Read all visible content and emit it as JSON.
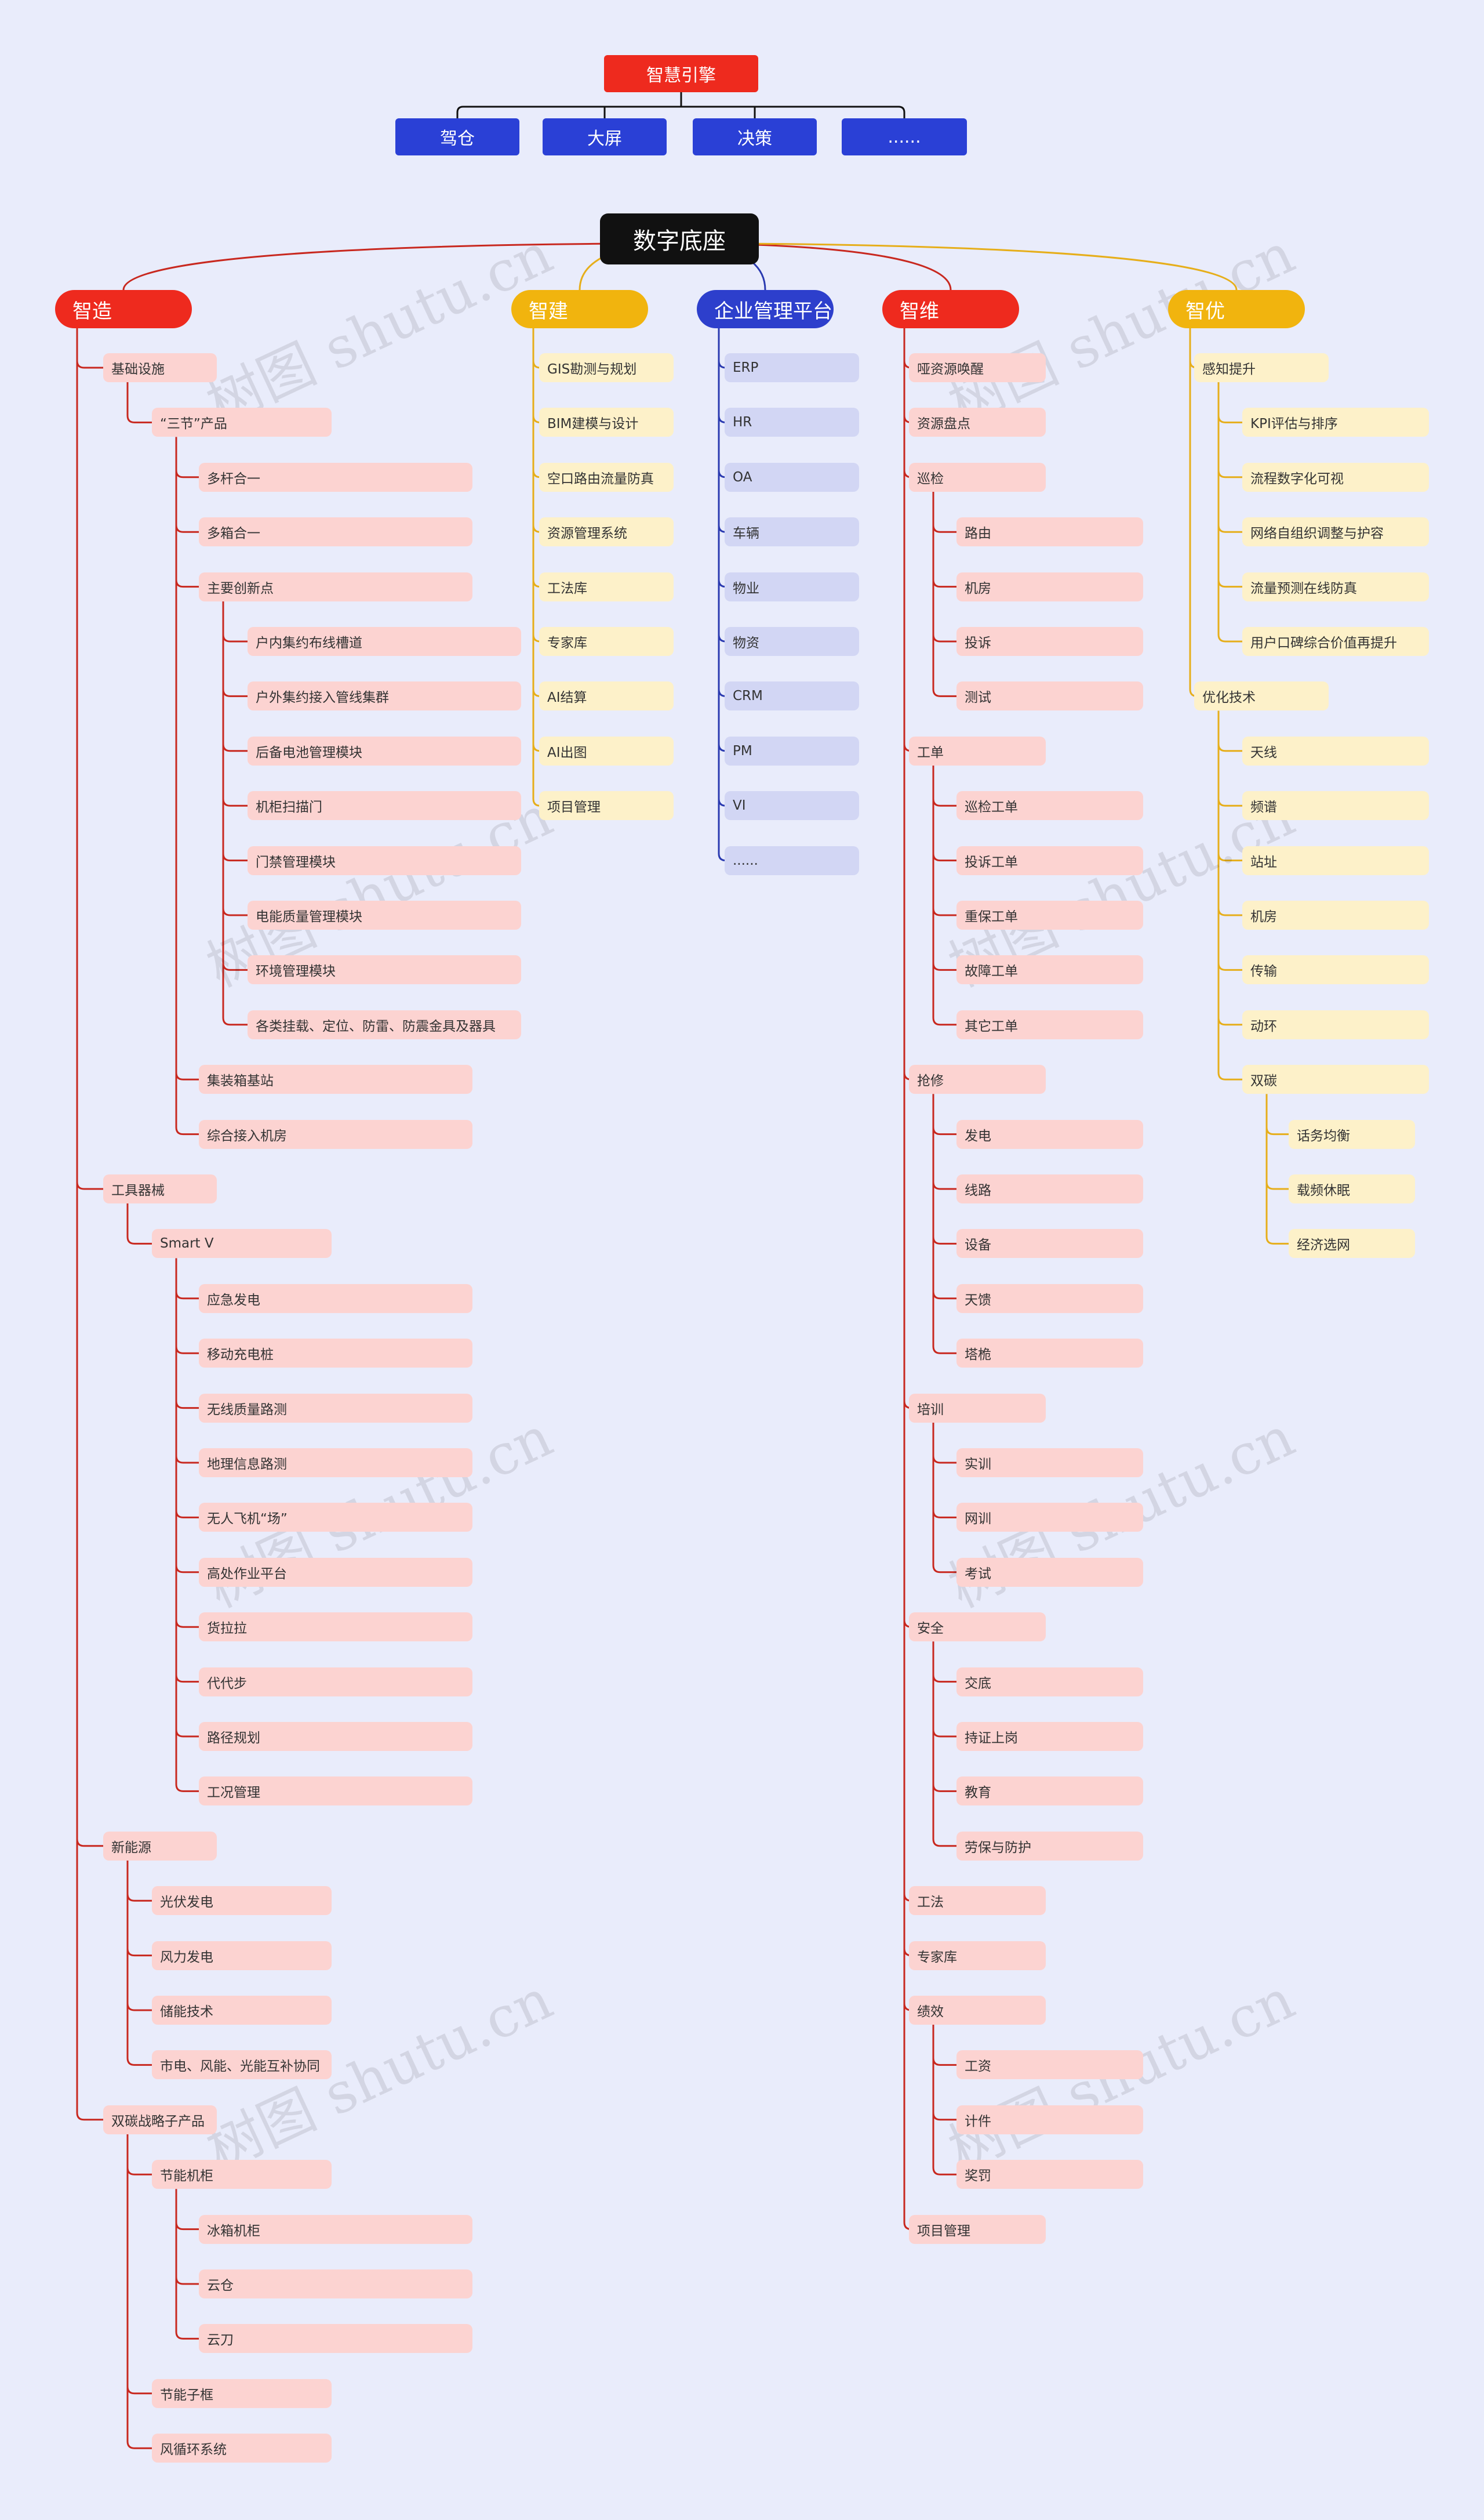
{
  "engine": {
    "title": "智慧引擎",
    "children": [
      "驾仓",
      "大屏",
      "决策",
      "......"
    ]
  },
  "center": {
    "title": "数字底座"
  },
  "branches": [
    {
      "title": "智造",
      "color": "red",
      "children": [
        {
          "label": "基础设施",
          "children": [
            {
              "label": "“三节”产品",
              "children": [
                {
                  "label": "多杆合一"
                },
                {
                  "label": "多箱合一"
                },
                {
                  "label": "主要创新点",
                  "children": [
                    {
                      "label": "户内集约布线槽道"
                    },
                    {
                      "label": "户外集约接入管线集群"
                    },
                    {
                      "label": "后备电池管理模块"
                    },
                    {
                      "label": "机柜扫描门"
                    },
                    {
                      "label": "门禁管理模块"
                    },
                    {
                      "label": "电能质量管理模块"
                    },
                    {
                      "label": "环境管理模块"
                    },
                    {
                      "label": "各类挂载、定位、防雷、防震金具及器具"
                    }
                  ]
                },
                {
                  "label": "集装箱基站"
                },
                {
                  "label": "综合接入机房"
                }
              ]
            }
          ]
        },
        {
          "label": "工具器械",
          "children": [
            {
              "label": "Smart V",
              "children": [
                {
                  "label": "应急发电"
                },
                {
                  "label": "移动充电桩"
                },
                {
                  "label": "无线质量路测"
                },
                {
                  "label": "地理信息路测"
                },
                {
                  "label": "无人飞机“场”"
                },
                {
                  "label": "高处作业平台"
                },
                {
                  "label": "货拉拉"
                },
                {
                  "label": "代代步"
                },
                {
                  "label": "路径规划"
                },
                {
                  "label": "工况管理"
                }
              ]
            }
          ]
        },
        {
          "label": "新能源",
          "children": [
            {
              "label": "光伏发电"
            },
            {
              "label": "风力发电"
            },
            {
              "label": "储能技术"
            },
            {
              "label": "市电、风能、光能互补协同"
            }
          ]
        },
        {
          "label": "双碳战略子产品",
          "children": [
            {
              "label": "节能机柜",
              "children": [
                {
                  "label": "冰箱机柜"
                },
                {
                  "label": "云仓"
                },
                {
                  "label": "云刀"
                }
              ]
            },
            {
              "label": "节能子框"
            },
            {
              "label": "风循环系统"
            }
          ]
        }
      ]
    },
    {
      "title": "智建",
      "color": "yellow",
      "children": [
        {
          "label": "GIS勘测与规划"
        },
        {
          "label": "BIM建模与设计"
        },
        {
          "label": "空口路由流量防真"
        },
        {
          "label": "资源管理系统"
        },
        {
          "label": "工法库"
        },
        {
          "label": "专家库"
        },
        {
          "label": "AI结算"
        },
        {
          "label": "AI出图"
        },
        {
          "label": "项目管理"
        }
      ]
    },
    {
      "title": "企业管理平台",
      "color": "blue",
      "children": [
        {
          "label": "ERP"
        },
        {
          "label": "HR"
        },
        {
          "label": "OA"
        },
        {
          "label": "车辆"
        },
        {
          "label": "物业"
        },
        {
          "label": "物资"
        },
        {
          "label": "CRM"
        },
        {
          "label": "PM"
        },
        {
          "label": "VI"
        },
        {
          "label": "......"
        }
      ]
    },
    {
      "title": "智维",
      "color": "red",
      "children": [
        {
          "label": "哑资源唤醒"
        },
        {
          "label": "资源盘点"
        },
        {
          "label": "巡检",
          "children": [
            {
              "label": "路由"
            },
            {
              "label": "机房"
            },
            {
              "label": "投诉"
            },
            {
              "label": "测试"
            }
          ]
        },
        {
          "label": "工单",
          "children": [
            {
              "label": "巡检工单"
            },
            {
              "label": "投诉工单"
            },
            {
              "label": "重保工单"
            },
            {
              "label": "故障工单"
            },
            {
              "label": "其它工单"
            }
          ]
        },
        {
          "label": "抢修",
          "children": [
            {
              "label": "发电"
            },
            {
              "label": "线路"
            },
            {
              "label": "设备"
            },
            {
              "label": "天馈"
            },
            {
              "label": "塔桅"
            }
          ]
        },
        {
          "label": "培训",
          "children": [
            {
              "label": "实训"
            },
            {
              "label": "网训"
            },
            {
              "label": "考试"
            }
          ]
        },
        {
          "label": "安全",
          "children": [
            {
              "label": "交底"
            },
            {
              "label": "持证上岗"
            },
            {
              "label": "教育"
            },
            {
              "label": "劳保与防护"
            }
          ]
        },
        {
          "label": "工法"
        },
        {
          "label": "专家库"
        },
        {
          "label": "绩效",
          "children": [
            {
              "label": "工资"
            },
            {
              "label": "计件"
            },
            {
              "label": "奖罚"
            }
          ]
        },
        {
          "label": "项目管理"
        }
      ]
    },
    {
      "title": "智优",
      "color": "yellow",
      "children": [
        {
          "label": "感知提升",
          "children": [
            {
              "label": "KPI评估与排序"
            },
            {
              "label": "流程数字化可视"
            },
            {
              "label": "网络自组织调整与护容"
            },
            {
              "label": "流量预测在线防真"
            },
            {
              "label": "用户口碑综合价值再提升"
            }
          ]
        },
        {
          "label": "优化技术",
          "children": [
            {
              "label": "天线"
            },
            {
              "label": "频谱"
            },
            {
              "label": "站址"
            },
            {
              "label": "机房"
            },
            {
              "label": "传输"
            },
            {
              "label": "动环"
            },
            {
              "label": "双碳",
              "children": [
                {
                  "label": "话务均衡"
                },
                {
                  "label": "载频休眠"
                },
                {
                  "label": "经济选网"
                }
              ]
            }
          ]
        }
      ]
    }
  ],
  "watermark": "树图 shutu.cn",
  "colors": {
    "red": "#ee2a1e",
    "red_leaf": "#fcd3d1",
    "red_line": "#c8281f",
    "yellow": "#f1b40e",
    "yellow_leaf": "#fdf1c9",
    "yellow_line": "#e6ae1a",
    "blue": "#2d3fcc",
    "blue_leaf": "#d2d6f4",
    "blue_line": "#2a3ab0",
    "background": "#e9ecfb",
    "center": "#111111"
  }
}
